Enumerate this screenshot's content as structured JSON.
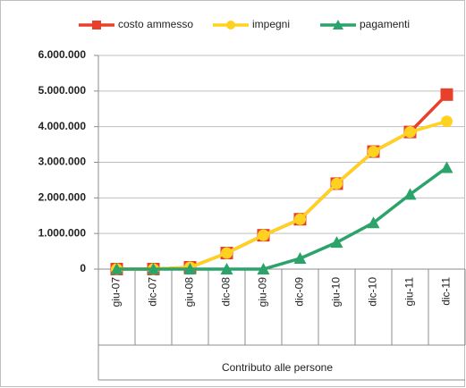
{
  "chart_data": {
    "type": "line",
    "categories": [
      "giu-07",
      "dic-07",
      "giu-08",
      "dic-08",
      "giu-09",
      "dic-09",
      "giu-10",
      "dic-10",
      "giu-11",
      "dic-11"
    ],
    "xlabel": "Contributo alle persone",
    "series": [
      {
        "name": "costo ammesso",
        "color": "#e8402a",
        "marker": "square",
        "values": [
          0,
          0,
          50000,
          450000,
          950000,
          1400000,
          2400000,
          3300000,
          3850000,
          4900000
        ]
      },
      {
        "name": "impegni",
        "color": "#ffd21f",
        "marker": "circle",
        "values": [
          0,
          0,
          50000,
          450000,
          950000,
          1400000,
          2400000,
          3300000,
          3850000,
          4150000
        ]
      },
      {
        "name": "pagamenti",
        "color": "#2ca36a",
        "marker": "triangle",
        "values": [
          0,
          0,
          0,
          0,
          0,
          300000,
          750000,
          1300000,
          2100000,
          2850000
        ]
      }
    ],
    "ylim": [
      0,
      6000000
    ],
    "yticks": [
      0,
      {
        "value": 1000000,
        "label": "1.000.000"
      },
      {
        "value": 2000000,
        "label": "2.000.000"
      },
      {
        "value": 3000000,
        "label": "3.000.000"
      },
      {
        "value": 4000000,
        "label": "4.000.000"
      },
      {
        "value": 5000000,
        "label": "5.000.000"
      },
      {
        "value": 6000000,
        "label": "6.000.000"
      }
    ],
    "grid": true,
    "legend": "top"
  }
}
